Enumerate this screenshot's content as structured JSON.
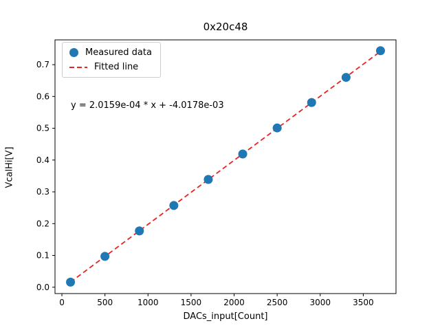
{
  "window": {
    "background": "#ffffff"
  },
  "chart_data": {
    "type": "scatter",
    "title": "0x20c48",
    "xlabel": "DACs_input[Count]",
    "ylabel": "VcalHi[V]",
    "annotation": "y = 2.0159e-04 * x + -4.0178e-03",
    "x": [
      100,
      500,
      900,
      1300,
      1700,
      2100,
      2500,
      2900,
      3300,
      3700
    ],
    "y": [
      0.016,
      0.097,
      0.177,
      0.257,
      0.339,
      0.419,
      0.501,
      0.581,
      0.66,
      0.744
    ],
    "fit": {
      "slope": 0.00020159,
      "intercept": -0.0040178,
      "x_start": 100,
      "x_end": 3700
    },
    "xlim": [
      -80,
      3880
    ],
    "ylim": [
      -0.02,
      0.778
    ],
    "x_tick_values": [
      0,
      500,
      1000,
      1500,
      2000,
      2500,
      3000,
      3500
    ],
    "x_tick_labels": [
      "0",
      "500",
      "1000",
      "1500",
      "2000",
      "2500",
      "3000",
      "3500"
    ],
    "y_tick_values": [
      0.0,
      0.1,
      0.2,
      0.3,
      0.4,
      0.5,
      0.6,
      0.7
    ],
    "y_tick_labels": [
      "0.0",
      "0.1",
      "0.2",
      "0.3",
      "0.4",
      "0.5",
      "0.6",
      "0.7"
    ],
    "legend": [
      {
        "label": "Measured data",
        "marker": "dot",
        "color": "#1f77b4"
      },
      {
        "label": "Fitted line",
        "marker": "dashed-line",
        "color": "#e82222"
      }
    ],
    "colors": {
      "points": "#1f77b4",
      "line": "#e82222",
      "axes": "#000000"
    },
    "grid": false,
    "legend_position": "upper left"
  }
}
